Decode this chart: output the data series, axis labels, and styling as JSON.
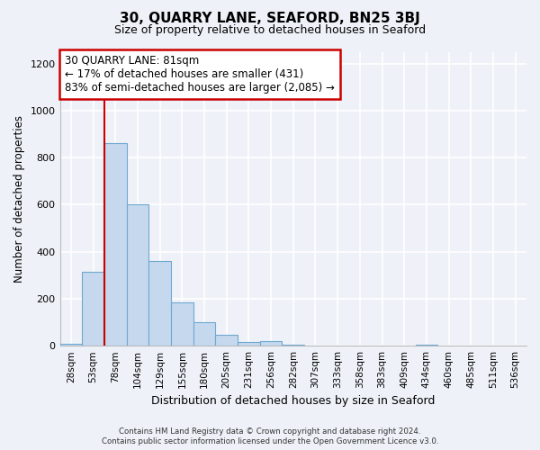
{
  "title": "30, QUARRY LANE, SEAFORD, BN25 3BJ",
  "subtitle": "Size of property relative to detached houses in Seaford",
  "xlabel": "Distribution of detached houses by size in Seaford",
  "ylabel": "Number of detached properties",
  "bar_labels": [
    "28sqm",
    "53sqm",
    "78sqm",
    "104sqm",
    "129sqm",
    "155sqm",
    "180sqm",
    "205sqm",
    "231sqm",
    "256sqm",
    "282sqm",
    "307sqm",
    "333sqm",
    "358sqm",
    "383sqm",
    "409sqm",
    "434sqm",
    "460sqm",
    "485sqm",
    "511sqm",
    "536sqm"
  ],
  "bar_values": [
    10,
    315,
    860,
    600,
    360,
    185,
    100,
    47,
    15,
    20,
    5,
    0,
    0,
    0,
    0,
    0,
    5,
    0,
    0,
    0,
    0
  ],
  "bar_color": "#c5d8ed",
  "bar_edge_color": "#6fa8d0",
  "vline_index": 1.5,
  "vline_color": "#cc0000",
  "annotation_line1": "30 QUARRY LANE: 81sqm",
  "annotation_line2": "← 17% of detached houses are smaller (431)",
  "annotation_line3": "83% of semi-detached houses are larger (2,085) →",
  "ylim": [
    0,
    1250
  ],
  "yticks": [
    0,
    200,
    400,
    600,
    800,
    1000,
    1200
  ],
  "bg_color": "#eef2f8",
  "grid_color": "#ffffff",
  "footer_line1": "Contains HM Land Registry data © Crown copyright and database right 2024.",
  "footer_line2": "Contains public sector information licensed under the Open Government Licence v3.0."
}
